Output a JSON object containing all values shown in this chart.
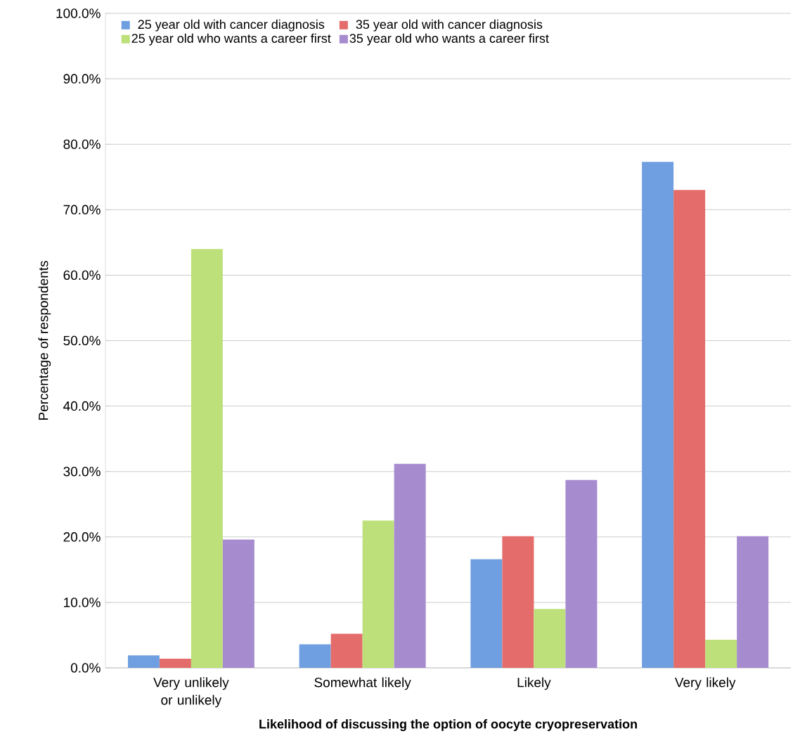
{
  "chart_data": {
    "type": "bar",
    "xlabel": "Likelihood of discussing the option of oocyte cryopreservation",
    "ylabel": "Percentage of respondents",
    "categories": [
      "Very unlikely or unlikely",
      "Somewhat likely",
      "Likely",
      "Very likely"
    ],
    "series": [
      {
        "name": "25 year old with cancer diagnosis",
        "color": "#6f9fe0",
        "values": [
          1.9,
          3.6,
          16.6,
          77.3
        ]
      },
      {
        "name": "35 year old with cancer diagnosis",
        "color": "#e46c6a",
        "values": [
          1.4,
          5.2,
          20.1,
          73.0
        ]
      },
      {
        "name": "25 year old who wants a career first",
        "color": "#bde07a",
        "values": [
          64.0,
          22.5,
          9.0,
          4.3
        ]
      },
      {
        "name": "35 year old who wants a career first",
        "color": "#a78bcf",
        "values": [
          19.6,
          31.2,
          28.7,
          20.1
        ]
      }
    ],
    "ylim": [
      0,
      100
    ],
    "yticks": [
      {
        "value": 0,
        "label": "0.0%"
      },
      {
        "value": 10,
        "label": "10.0%"
      },
      {
        "value": 20,
        "label": "20.0%"
      },
      {
        "value": 30,
        "label": "30.0%"
      },
      {
        "value": 40,
        "label": "40.0%"
      },
      {
        "value": 50,
        "label": "50.0%"
      },
      {
        "value": 60,
        "label": "60.0%"
      },
      {
        "value": 70,
        "label": "70.0%"
      },
      {
        "value": 80,
        "label": "80.0%"
      },
      {
        "value": 90,
        "label": "90.0%"
      },
      {
        "value": 100,
        "label": "100.0%"
      }
    ],
    "grid": "y",
    "legend": "top left"
  }
}
